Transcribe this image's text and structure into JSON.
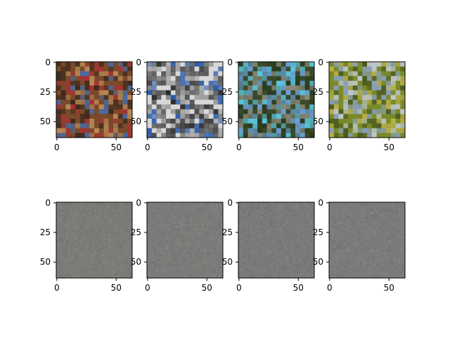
{
  "chart_data": {
    "type": "image-grid",
    "rows": 2,
    "cols": 4,
    "image_extent": [
      0,
      63
    ],
    "x_ticks": [
      0,
      50
    ],
    "y_ticks": [
      0,
      25,
      50
    ],
    "panels": [
      {
        "row": 0,
        "col": 0,
        "content": "photo",
        "palette": [
          "#7a4a2a",
          "#b88a55",
          "#3d2a1e",
          "#a83232",
          "#4a6aa0"
        ]
      },
      {
        "row": 0,
        "col": 1,
        "content": "photo",
        "palette": [
          "#d8d8d8",
          "#5a5a5a",
          "#2a2a2a",
          "#2a5aa8",
          "#9a9a9a"
        ]
      },
      {
        "row": 0,
        "col": 2,
        "content": "photo",
        "palette": [
          "#3a4a2a",
          "#6aa0d8",
          "#5ac8e0",
          "#8a8a7a",
          "#2a3a1e"
        ]
      },
      {
        "row": 0,
        "col": 3,
        "content": "photo",
        "palette": [
          "#7a8a2a",
          "#b8b04a",
          "#4a5a1e",
          "#8aa0c0",
          "#c0c8d0"
        ]
      },
      {
        "row": 1,
        "col": 0,
        "content": "noise",
        "base": "#7b7b78"
      },
      {
        "row": 1,
        "col": 1,
        "content": "noise",
        "base": "#7c7b79"
      },
      {
        "row": 1,
        "col": 2,
        "content": "noise",
        "base": "#7a7a79"
      },
      {
        "row": 1,
        "col": 3,
        "content": "noise",
        "base": "#7b7b7a"
      }
    ]
  }
}
